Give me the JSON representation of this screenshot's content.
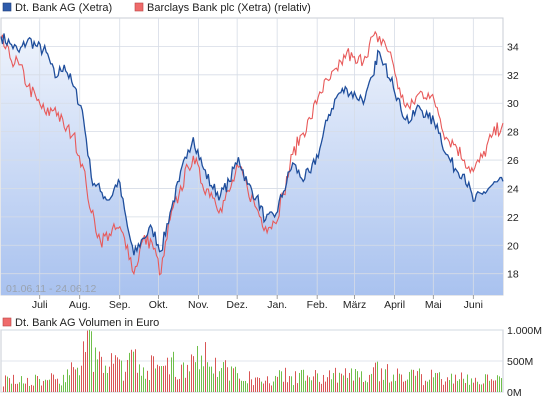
{
  "chart_data": [
    {
      "type": "line",
      "title": "",
      "range_label": "01.06.11 - 24.06.12",
      "legend_position": "top-left",
      "grid": true,
      "ylim": [
        16.5,
        36
      ],
      "y_ticks": [
        "34",
        "32",
        "30",
        "28",
        "26",
        "24",
        "22",
        "20",
        "18"
      ],
      "y_tick_values": [
        34,
        32,
        30,
        28,
        26,
        24,
        22,
        20,
        18
      ],
      "x_ticks": [
        "Juli",
        "Aug.",
        "Sep.",
        "Okt.",
        "Nov.",
        "Dez.",
        "Jan.",
        "Feb.",
        "März",
        "April",
        "Mai",
        "Juni"
      ],
      "x_tick_dates": [
        "2011-07-01",
        "2011-08-01",
        "2011-09-01",
        "2011-10-01",
        "2011-11-01",
        "2011-12-01",
        "2012-01-01",
        "2012-02-01",
        "2012-03-01",
        "2012-04-01",
        "2012-05-01",
        "2012-06-01"
      ],
      "x_range": [
        "2011-06-01",
        "2012-06-24"
      ],
      "colors": {
        "series_1": "#1f4e9c",
        "series_2": "#e85a5a",
        "area_top": "#eef3fc",
        "area_bottom": "#a9c2ef",
        "grid": "#d6dce6"
      },
      "series": [
        {
          "name": "Dt. Bank AG (Xetra)",
          "x": [
            "2011-06-01",
            "2011-06-08",
            "2011-06-15",
            "2011-06-22",
            "2011-06-29",
            "2011-07-06",
            "2011-07-13",
            "2011-07-20",
            "2011-07-27",
            "2011-08-03",
            "2011-08-06",
            "2011-08-10",
            "2011-08-17",
            "2011-08-24",
            "2011-08-31",
            "2011-09-07",
            "2011-09-12",
            "2011-09-19",
            "2011-09-26",
            "2011-10-03",
            "2011-10-10",
            "2011-10-17",
            "2011-10-24",
            "2011-10-28",
            "2011-11-04",
            "2011-11-11",
            "2011-11-18",
            "2011-11-25",
            "2011-12-02",
            "2011-12-09",
            "2011-12-16",
            "2011-12-23",
            "2011-12-30",
            "2012-01-06",
            "2012-01-13",
            "2012-01-20",
            "2012-01-27",
            "2012-02-03",
            "2012-02-10",
            "2012-02-17",
            "2012-02-24",
            "2012-03-02",
            "2012-03-09",
            "2012-03-16",
            "2012-03-19",
            "2012-03-23",
            "2012-03-30",
            "2012-04-06",
            "2012-04-13",
            "2012-04-20",
            "2012-04-27",
            "2012-05-04",
            "2012-05-11",
            "2012-05-18",
            "2012-05-25",
            "2012-06-01",
            "2012-06-08",
            "2012-06-15",
            "2012-06-24"
          ],
          "values": [
            34.7,
            34.2,
            33.6,
            34.5,
            34.0,
            33.6,
            31.8,
            32.7,
            31.2,
            29.5,
            27.5,
            24.8,
            23.8,
            23.2,
            24.6,
            21.3,
            19.3,
            20.5,
            21.2,
            19.6,
            22.3,
            24.5,
            26.7,
            27.6,
            25.6,
            24.2,
            23.5,
            24.5,
            26.2,
            24.3,
            23.4,
            21.8,
            22.0,
            23.8,
            25.8,
            24.7,
            25.1,
            26.8,
            29.2,
            30.6,
            31.0,
            30.5,
            30.3,
            32.0,
            33.7,
            32.7,
            31.8,
            29.5,
            28.7,
            29.8,
            29.0,
            28.5,
            26.4,
            25.4,
            25.0,
            23.1,
            23.6,
            24.2,
            24.5
          ]
        },
        {
          "name": "Barclays Bank plc (Xetra) (relativ)",
          "x": [
            "2011-06-01",
            "2011-06-08",
            "2011-06-15",
            "2011-06-22",
            "2011-06-29",
            "2011-07-06",
            "2011-07-13",
            "2011-07-20",
            "2011-07-27",
            "2011-08-03",
            "2011-08-06",
            "2011-08-10",
            "2011-08-17",
            "2011-08-24",
            "2011-08-31",
            "2011-09-07",
            "2011-09-12",
            "2011-09-19",
            "2011-09-26",
            "2011-10-03",
            "2011-10-10",
            "2011-10-17",
            "2011-10-24",
            "2011-10-28",
            "2011-11-04",
            "2011-11-11",
            "2011-11-18",
            "2011-11-25",
            "2011-12-02",
            "2011-12-09",
            "2011-12-16",
            "2011-12-23",
            "2011-12-30",
            "2012-01-06",
            "2012-01-13",
            "2012-01-20",
            "2012-01-27",
            "2012-02-03",
            "2012-02-10",
            "2012-02-17",
            "2012-02-24",
            "2012-03-02",
            "2012-03-09",
            "2012-03-16",
            "2012-03-19",
            "2012-03-23",
            "2012-03-30",
            "2012-04-06",
            "2012-04-13",
            "2012-04-20",
            "2012-04-27",
            "2012-05-04",
            "2012-05-11",
            "2012-05-18",
            "2012-05-25",
            "2012-06-01",
            "2012-06-08",
            "2012-06-15",
            "2012-06-24"
          ],
          "values": [
            34.5,
            33.2,
            32.7,
            31.2,
            30.2,
            29.2,
            29.7,
            28.3,
            27.8,
            25.7,
            24.3,
            22.3,
            20.3,
            20.8,
            21.2,
            20.0,
            18.0,
            20.4,
            20.2,
            18.0,
            21.8,
            23.6,
            25.5,
            26.3,
            24.3,
            23.7,
            22.6,
            23.8,
            25.5,
            24.0,
            22.6,
            21.3,
            21.6,
            23.6,
            26.4,
            27.8,
            28.9,
            30.8,
            31.6,
            32.3,
            33.6,
            32.8,
            33.3,
            34.8,
            34.3,
            34.5,
            33.1,
            30.4,
            29.6,
            30.7,
            30.7,
            29.7,
            27.6,
            27.1,
            26.0,
            25.2,
            26.2,
            27.6,
            28.6
          ]
        }
      ]
    },
    {
      "type": "bar",
      "title": "",
      "legend_position": "top-left",
      "ylim": [
        0,
        1000
      ],
      "y_ticks": [
        "1.000M",
        "500M",
        "0M"
      ],
      "y_tick_values": [
        1000,
        500,
        0
      ],
      "x_range": [
        "2011-06-01",
        "2012-06-24"
      ],
      "colors": {
        "up": "#6fbf4a",
        "down": "#d95555",
        "grid": "#d6dce6"
      },
      "series": [
        {
          "name": "Dt. Bank AG Volumen in Euro",
          "unit": "M",
          "x": [
            "2011-06-01",
            "2011-06-15",
            "2011-07-01",
            "2011-07-15",
            "2011-08-01",
            "2011-08-08",
            "2011-08-15",
            "2011-09-01",
            "2011-09-12",
            "2011-09-26",
            "2011-10-10",
            "2011-10-24",
            "2011-11-07",
            "2011-11-21",
            "2011-12-05",
            "2011-12-19",
            "2012-01-09",
            "2012-01-23",
            "2012-02-06",
            "2012-02-20",
            "2012-03-05",
            "2012-03-19",
            "2012-04-02",
            "2012-04-16",
            "2012-05-01",
            "2012-05-15",
            "2012-06-01",
            "2012-06-15"
          ],
          "values": [
            260,
            210,
            230,
            250,
            560,
            880,
            620,
            480,
            610,
            480,
            520,
            540,
            820,
            460,
            300,
            260,
            320,
            300,
            340,
            330,
            360,
            420,
            330,
            300,
            320,
            280,
            260,
            230
          ]
        }
      ]
    }
  ]
}
